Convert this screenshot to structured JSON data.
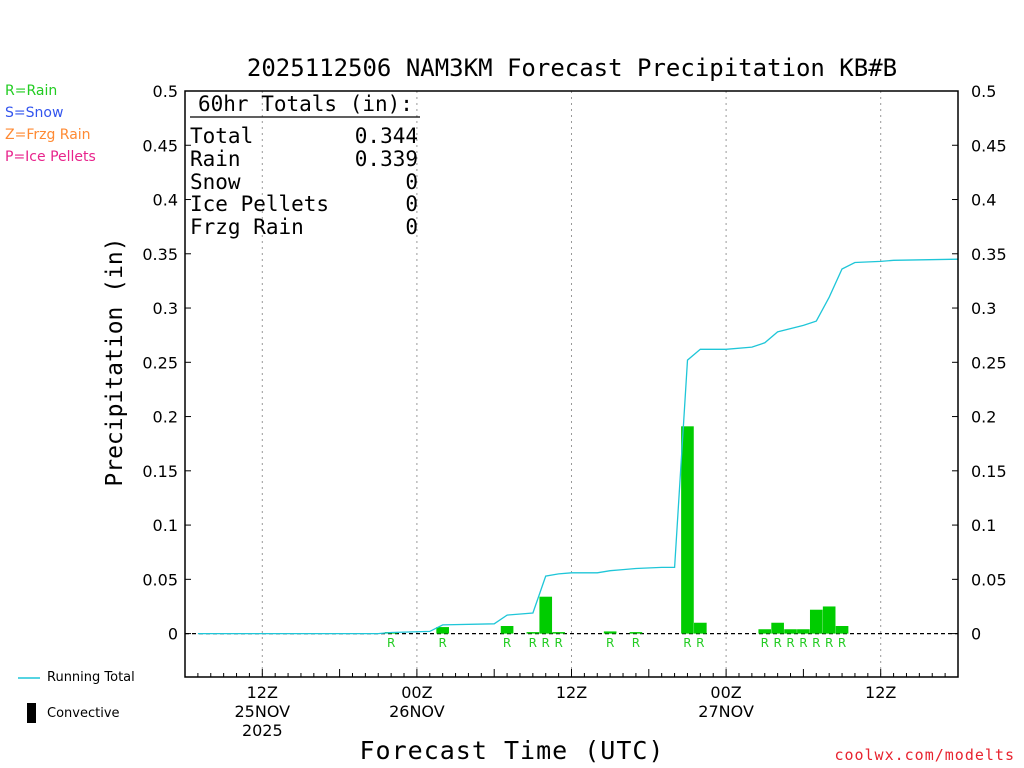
{
  "title": "2025112506 NAM3KM Forecast Precipitation KB#B",
  "precip_legend": [
    {
      "text": "R=Rain",
      "color": "#22cc22"
    },
    {
      "text": "S=Snow",
      "color": "#3355ee"
    },
    {
      "text": "Z=Frzg Rain",
      "color": "#ff8a33"
    },
    {
      "text": "P=Ice Pellets",
      "color": "#e8238c"
    }
  ],
  "totals": {
    "header": "60hr Totals (in):",
    "rows": [
      {
        "label": "Total",
        "value": "0.344"
      },
      {
        "label": "Rain",
        "value": "0.339"
      },
      {
        "label": "Snow",
        "value": "0"
      },
      {
        "label": "Ice Pellets",
        "value": "0"
      },
      {
        "label": "Frzg Rain",
        "value": "0"
      }
    ]
  },
  "footer_legend": {
    "running_total": "Running Total",
    "convective": "Convective"
  },
  "credit": "coolwx.com/modelts",
  "colors": {
    "running_total": "#1fc6d8",
    "bars": "#00cc00",
    "rain_marker": "#22cc22"
  },
  "chart_data": {
    "type": "bar",
    "title": "2025112506 NAM3KM Forecast Precipitation KB#B",
    "xlabel": "Forecast Time (UTC)",
    "ylabel": "Precipitation (in)",
    "ylim": [
      -0.04,
      0.5
    ],
    "yticks": [
      0,
      0.05,
      0.1,
      0.15,
      0.2,
      0.25,
      0.3,
      0.35,
      0.4,
      0.45,
      0.5
    ],
    "xlim": [
      6,
      66
    ],
    "grid": "vertical dotted at 12Z/00Z",
    "xticks": [
      {
        "hour": 12,
        "lines": [
          "12Z",
          "25NOV",
          "2025"
        ]
      },
      {
        "hour": 24,
        "lines": [
          "00Z",
          "26NOV"
        ]
      },
      {
        "hour": 36,
        "lines": [
          "12Z"
        ]
      },
      {
        "hour": 48,
        "lines": [
          "00Z",
          "27NOV"
        ]
      },
      {
        "hour": 60,
        "lines": [
          "12Z"
        ]
      }
    ],
    "bars": [
      {
        "hour": 22,
        "value": 0.001
      },
      {
        "hour": 26,
        "value": 0.006
      },
      {
        "hour": 31,
        "value": 0.007
      },
      {
        "hour": 33,
        "value": 0.001
      },
      {
        "hour": 34,
        "value": 0.034
      },
      {
        "hour": 35,
        "value": 0.001
      },
      {
        "hour": 39,
        "value": 0.002
      },
      {
        "hour": 41,
        "value": 0.001
      },
      {
        "hour": 45,
        "value": 0.191
      },
      {
        "hour": 46,
        "value": 0.01
      },
      {
        "hour": 51,
        "value": 0.004
      },
      {
        "hour": 52,
        "value": 0.01
      },
      {
        "hour": 53,
        "value": 0.004
      },
      {
        "hour": 54,
        "value": 0.004
      },
      {
        "hour": 55,
        "value": 0.022
      },
      {
        "hour": 56,
        "value": 0.025
      },
      {
        "hour": 57,
        "value": 0.007
      }
    ],
    "precip_type_markers": {
      "label": "R",
      "hours": [
        22,
        26,
        31,
        33,
        34,
        35,
        39,
        41,
        45,
        46,
        51,
        52,
        53,
        54,
        55,
        56,
        57
      ]
    },
    "series": [
      {
        "name": "Running Total",
        "points": [
          [
            7,
            0
          ],
          [
            21,
            0
          ],
          [
            22,
            0.001
          ],
          [
            25,
            0.002
          ],
          [
            26,
            0.008
          ],
          [
            30,
            0.009
          ],
          [
            31,
            0.017
          ],
          [
            33,
            0.019
          ],
          [
            34,
            0.053
          ],
          [
            35,
            0.055
          ],
          [
            36,
            0.056
          ],
          [
            38,
            0.056
          ],
          [
            39,
            0.058
          ],
          [
            40,
            0.059
          ],
          [
            41,
            0.06
          ],
          [
            43,
            0.061
          ],
          [
            44,
            0.061
          ],
          [
            45,
            0.252
          ],
          [
            46,
            0.262
          ],
          [
            48,
            0.262
          ],
          [
            50,
            0.264
          ],
          [
            51,
            0.268
          ],
          [
            52,
            0.278
          ],
          [
            54,
            0.284
          ],
          [
            55,
            0.288
          ],
          [
            56,
            0.31
          ],
          [
            57,
            0.336
          ],
          [
            58,
            0.342
          ],
          [
            60,
            0.343
          ],
          [
            61,
            0.344
          ],
          [
            66,
            0.345
          ]
        ]
      }
    ]
  }
}
